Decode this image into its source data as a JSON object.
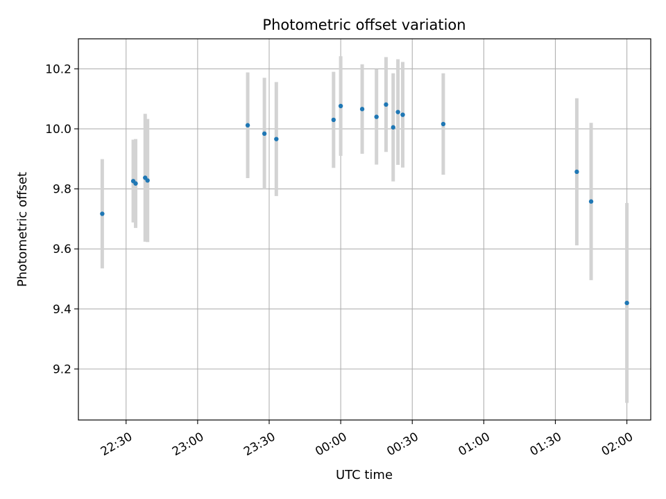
{
  "chart_data": {
    "type": "scatter",
    "title": "Photometric offset variation",
    "xlabel": "UTC time",
    "ylabel": "Photometric offset",
    "x_unit": "UTC time (HH:MM, night spanning midnight)",
    "xlim": [
      "22:10",
      "02:10"
    ],
    "ylim": [
      9.03,
      10.3
    ],
    "xticks": [
      "22:30",
      "23:00",
      "23:30",
      "00:00",
      "00:30",
      "01:00",
      "01:30",
      "02:00"
    ],
    "yticks": [
      9.2,
      9.4,
      9.6,
      9.8,
      10.0,
      10.2
    ],
    "ytick_labels": [
      "9.2",
      "9.4",
      "9.6",
      "9.8",
      "10.0",
      "10.2"
    ],
    "grid": true,
    "colors": {
      "points": "#1f77b4",
      "errorbars": "#d3d3d3",
      "grid": "#b0b0b0"
    },
    "series": [
      {
        "points": [
          {
            "x": "22:20",
            "y": 9.717,
            "err": 0.182
          },
          {
            "x": "22:33",
            "y": 9.826,
            "err": 0.138
          },
          {
            "x": "22:34",
            "y": 9.818,
            "err": 0.148
          },
          {
            "x": "22:38",
            "y": 9.837,
            "err": 0.213
          },
          {
            "x": "22:39",
            "y": 9.828,
            "err": 0.205
          },
          {
            "x": "23:21",
            "y": 10.012,
            "err": 0.176
          },
          {
            "x": "23:28",
            "y": 9.984,
            "err": 0.186
          },
          {
            "x": "23:33",
            "y": 9.966,
            "err": 0.19
          },
          {
            "x": "23:57",
            "y": 10.03,
            "err": 0.16
          },
          {
            "x": "00:00",
            "y": 10.076,
            "err": 0.166
          },
          {
            "x": "00:09",
            "y": 10.066,
            "err": 0.149
          },
          {
            "x": "00:15",
            "y": 10.04,
            "err": 0.159
          },
          {
            "x": "00:19",
            "y": 10.081,
            "err": 0.158
          },
          {
            "x": "00:22",
            "y": 10.005,
            "err": 0.18
          },
          {
            "x": "00:24",
            "y": 10.056,
            "err": 0.176
          },
          {
            "x": "00:26",
            "y": 10.047,
            "err": 0.176
          },
          {
            "x": "00:43",
            "y": 10.016,
            "err": 0.169
          },
          {
            "x": "01:39",
            "y": 9.857,
            "err": 0.245
          },
          {
            "x": "01:45",
            "y": 9.758,
            "err": 0.262
          },
          {
            "x": "02:00",
            "y": 9.42,
            "err": 0.333
          }
        ]
      }
    ]
  }
}
